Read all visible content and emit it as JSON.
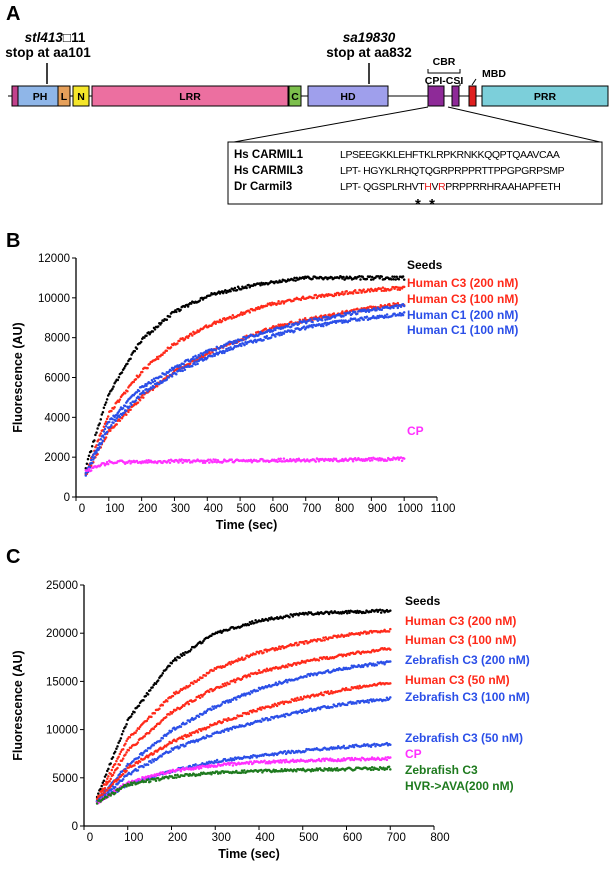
{
  "panel_a": {
    "letter": "A",
    "mutations": [
      {
        "name": "stl413",
        "suffix": "□11",
        "desc": "stop at aa101"
      },
      {
        "name": "sa19830",
        "suffix": "",
        "desc": "stop at aa832"
      }
    ],
    "domains": [
      {
        "label": "PH",
        "color": "#8fb6e8"
      },
      {
        "label": "L",
        "color": "#e6a05a"
      },
      {
        "label": "N",
        "color": "#f5e62a"
      },
      {
        "label": "LRR",
        "color": "#ec6fa0"
      },
      {
        "label": "C",
        "color": "#7cbf4c"
      },
      {
        "label": "HD",
        "color": "#9f9fec"
      },
      {
        "label": "",
        "color": "#8e2a98"
      },
      {
        "label": "",
        "color": "#8e2a98"
      },
      {
        "label": "",
        "color": "#e02020"
      },
      {
        "label": "PRR",
        "color": "#7ccfda"
      }
    ],
    "region_labels": {
      "cbr": "CBR",
      "cpi": "CPI-CSI",
      "mbd": "MBD"
    },
    "alignment": [
      {
        "name": "Hs CARMIL1",
        "pre": "LPSEEGKKLEHFTKLRPKRNKKQQPTQAAVCAA",
        "red1": "",
        "mid": "",
        "red2": "",
        "post": ""
      },
      {
        "name": "Hs CARMIL3",
        "pre": "LPT- HGYKLRHQTQGRPRPPRTTPPGPGRPSMP",
        "red1": "",
        "mid": "",
        "red2": "",
        "post": ""
      },
      {
        "name": "Dr Carmil3",
        "pre": "LPT- QGSPLRHVT",
        "red1": "H",
        "mid": "V",
        "red2": "R",
        "post": "PRPPRRHRAAHAPFETH"
      }
    ],
    "asterisks": "*  *"
  },
  "chart_data": [
    {
      "panel": "B",
      "type": "scatter",
      "xlabel": "Time (sec)",
      "ylabel": "Fluorescence (AU)",
      "xlim": [
        0,
        1100
      ],
      "ylim": [
        0,
        12000
      ],
      "xticks": [
        0,
        100,
        200,
        300,
        400,
        500,
        600,
        700,
        800,
        900,
        1000,
        1100
      ],
      "yticks": [
        0,
        2000,
        4000,
        6000,
        8000,
        10000,
        12000
      ],
      "grid": false,
      "legend_position": "right",
      "x": [
        30,
        100,
        200,
        300,
        400,
        500,
        600,
        700,
        800,
        900,
        1000
      ],
      "series": [
        {
          "name": "Seeds",
          "color": "#000000",
          "values": [
            1500,
            5200,
            7900,
            9300,
            10100,
            10500,
            10800,
            11000,
            11000,
            11000,
            11000
          ]
        },
        {
          "name": "Human C3 (200 nM)",
          "color": "#ff2a1a",
          "values": [
            1200,
            4200,
            6300,
            7700,
            8600,
            9200,
            9700,
            10000,
            10200,
            10400,
            10500
          ]
        },
        {
          "name": "Human C3 (100 nM)",
          "color": "#ff2a1a",
          "values": [
            1100,
            3300,
            5000,
            6300,
            7200,
            7900,
            8500,
            8900,
            9200,
            9500,
            9700
          ]
        },
        {
          "name": "Human C1 (200 nM)",
          "color": "#2b4fe8",
          "values": [
            1200,
            3800,
            5500,
            6500,
            7300,
            7900,
            8400,
            8800,
            9100,
            9400,
            9600
          ]
        },
        {
          "name": "Human C1 (100 nM)",
          "color": "#2b4fe8",
          "values": [
            1100,
            3500,
            5200,
            6200,
            7000,
            7600,
            8100,
            8500,
            8800,
            9000,
            9200
          ]
        },
        {
          "name": "CP",
          "color": "#ff30ff",
          "values": [
            1300,
            1750,
            1750,
            1800,
            1800,
            1800,
            1850,
            1850,
            1850,
            1900,
            1900
          ]
        }
      ]
    },
    {
      "panel": "C",
      "type": "scatter",
      "xlabel": "Time (sec)",
      "ylabel": "Fluorescence (AU)",
      "xlim": [
        0,
        800
      ],
      "ylim": [
        0,
        25000
      ],
      "xticks": [
        0,
        100,
        200,
        300,
        400,
        500,
        600,
        700,
        800
      ],
      "yticks": [
        0,
        5000,
        10000,
        15000,
        20000,
        25000
      ],
      "grid": false,
      "legend_position": "right",
      "x": [
        30,
        100,
        200,
        300,
        400,
        500,
        600,
        700
      ],
      "series": [
        {
          "name": "Seeds",
          "color": "#000000",
          "values": [
            3000,
            11000,
            17000,
            20000,
            21300,
            22000,
            22200,
            22300
          ]
        },
        {
          "name": "Human C3 (200 nM)",
          "color": "#ff2a1a",
          "values": [
            2800,
            9000,
            13500,
            16300,
            18000,
            19000,
            19800,
            20300
          ]
        },
        {
          "name": "Human C3 (100 nM)",
          "color": "#ff2a1a",
          "values": [
            2700,
            7800,
            11800,
            14300,
            16000,
            17000,
            17800,
            18400
          ]
        },
        {
          "name": "Zebrafish C3 (200 nM)",
          "color": "#2b4fe8",
          "values": [
            2600,
            6300,
            9900,
            12400,
            14200,
            15500,
            16400,
            17000
          ]
        },
        {
          "name": "Human C3 (50 nM)",
          "color": "#ff2a1a",
          "values": [
            2600,
            6000,
            8700,
            10600,
            12100,
            13300,
            14200,
            14900
          ]
        },
        {
          "name": "Zebrafish C3 (100 nM)",
          "color": "#2b4fe8",
          "values": [
            2500,
            5300,
            7900,
            9600,
            10900,
            11900,
            12700,
            13200
          ]
        },
        {
          "name": "Zebrafish C3 (50 nM)",
          "color": "#2b4fe8",
          "values": [
            2500,
            4300,
            5700,
            6700,
            7300,
            7800,
            8200,
            8500
          ]
        },
        {
          "name": "CP",
          "color": "#ff30ff",
          "values": [
            2400,
            4500,
            5700,
            6300,
            6600,
            6800,
            6900,
            7000
          ]
        },
        {
          "name": "Zebrafish C3 HVR->AVA(200 nM)",
          "color": "#1e7a1e",
          "values": [
            2400,
            4300,
            5100,
            5500,
            5700,
            5800,
            5900,
            6000
          ]
        }
      ]
    }
  ]
}
